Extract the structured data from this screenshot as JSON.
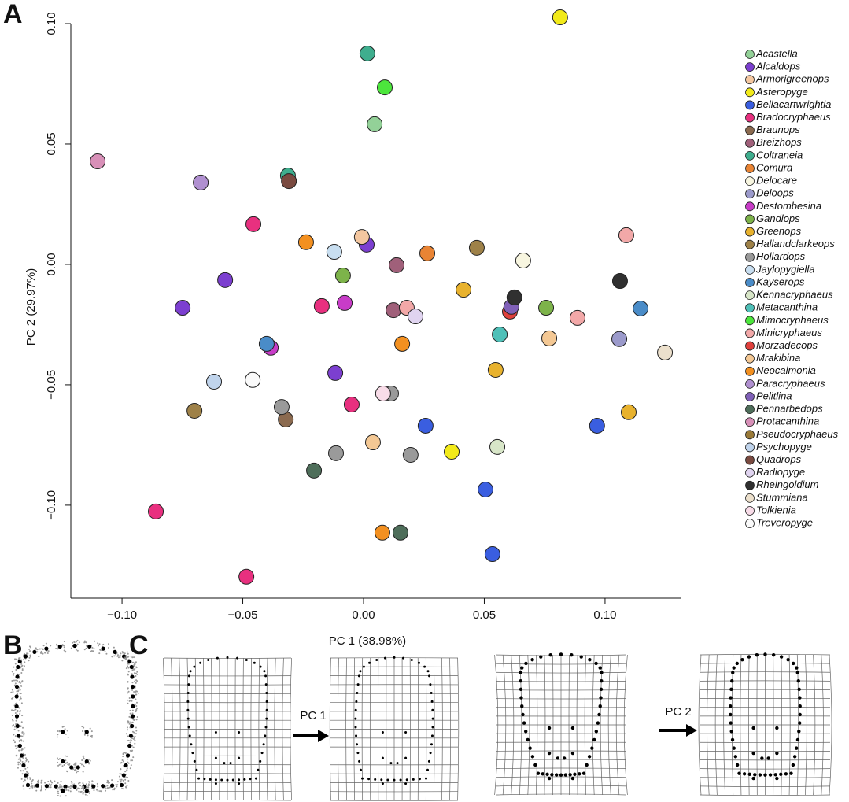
{
  "figure": {
    "panel_labels": [
      "A",
      "B",
      "C"
    ],
    "arrow_labels": [
      "PC 1",
      "PC 2"
    ]
  },
  "chart_data": {
    "type": "scatter",
    "x_label": "PC 1 (38.98%)",
    "y_label": "PC 2 (29.97%)",
    "xlim": [
      -0.1212,
      0.1313
    ],
    "ylim": [
      -0.1386,
      0.1
    ],
    "xticks": [
      {
        "value": -0.1,
        "label": "−0.10"
      },
      {
        "value": -0.05,
        "label": "−0.05"
      },
      {
        "value": 0,
        "label": "0.00"
      },
      {
        "value": 0.05,
        "label": "0.05"
      },
      {
        "value": 0.1,
        "label": "0.10"
      }
    ],
    "yticks": [
      {
        "value": -0.1,
        "label": "−0.10"
      },
      {
        "value": -0.05,
        "label": "−0.05"
      },
      {
        "value": 0,
        "label": "0.00"
      },
      {
        "value": 0.05,
        "label": "0.05"
      },
      {
        "value": 0.1,
        "label": "0.10"
      }
    ],
    "legend_position": "right",
    "series": [
      {
        "name": "Acastella",
        "color": "#93d198",
        "x": [
          0.0046
        ],
        "y": [
          0.0582
        ]
      },
      {
        "name": "Alcaldops",
        "color": "#7c3fd0",
        "x": [
          -0.0573,
          -0.0749,
          -0.0117,
          0.0013
        ],
        "y": [
          -0.0065,
          -0.018,
          -0.0451,
          0.0082
        ]
      },
      {
        "name": "Armorigreenops",
        "color": "#f4c7a0",
        "x": [
          -0.0007
        ],
        "y": [
          0.0114
        ]
      },
      {
        "name": "Asteropyge",
        "color": "#f2ea1a",
        "x": [
          0.0814,
          0.0365
        ],
        "y": [
          0.1026,
          -0.0778
        ]
      },
      {
        "name": "Bellacartwrightia",
        "color": "#3a5ee0",
        "x": [
          0.0257,
          0.0967,
          0.0505,
          0.0534
        ],
        "y": [
          -0.067,
          -0.067,
          -0.0935,
          -0.1203
        ]
      },
      {
        "name": "Bradocryphaeus",
        "color": "#e8307f",
        "x": [
          -0.0456,
          -0.0173,
          -0.0049,
          -0.086,
          -0.0485
        ],
        "y": [
          0.0167,
          -0.0173,
          -0.0582,
          -0.1026,
          -0.1297
        ]
      },
      {
        "name": "Braunops",
        "color": "#8b6a4f",
        "x": [
          -0.0322
        ],
        "y": [
          -0.0644
        ]
      },
      {
        "name": "Breizhops",
        "color": "#a0607a",
        "x": [
          0.0137,
          0.0124
        ],
        "y": [
          -0.0003,
          -0.019
        ]
      },
      {
        "name": "Coltraneia",
        "color": "#3fae8e",
        "x": [
          0.0016,
          -0.0313
        ],
        "y": [
          0.0876,
          0.0369
        ]
      },
      {
        "name": "Comura",
        "color": "#e98434",
        "x": [
          0.0264
        ],
        "y": [
          0.0046
        ]
      },
      {
        "name": "Delocare",
        "color": "#f8f6e0",
        "x": [
          0.0661
        ],
        "y": [
          0.0016
        ]
      },
      {
        "name": "Deloops",
        "color": "#9b9acb",
        "x": [
          0.1059
        ],
        "y": [
          -0.031
        ]
      },
      {
        "name": "Destombesina",
        "color": "#c83cc8",
        "x": [
          -0.0078,
          -0.0384
        ],
        "y": [
          -0.016,
          -0.0346
        ]
      },
      {
        "name": "Gandlops",
        "color": "#7db34a",
        "x": [
          -0.0085,
          0.0756
        ],
        "y": [
          -0.0046,
          -0.018
        ]
      },
      {
        "name": "Greenops",
        "color": "#e8b22e",
        "x": [
          0.0414,
          0.0547,
          0.1098
        ],
        "y": [
          -0.0105,
          -0.0438,
          -0.0614
        ]
      },
      {
        "name": "Hallandclarkeops",
        "color": "#9e8148",
        "x": [
          0.0469,
          -0.07
        ],
        "y": [
          0.0069,
          -0.0608
        ]
      },
      {
        "name": "Hollardops",
        "color": "#9a9a9a",
        "x": [
          0.0114,
          -0.0339,
          -0.0114,
          0.0195
        ],
        "y": [
          -0.0536,
          -0.0592,
          -0.0784,
          -0.0791
        ]
      },
      {
        "name": "Jaylopygiella",
        "color": "#c8def0",
        "x": [
          -0.0121
        ],
        "y": [
          0.0052
        ]
      },
      {
        "name": "Kayserops",
        "color": "#4a8cc8",
        "x": [
          0.1147,
          -0.0401
        ],
        "y": [
          -0.0183,
          -0.033
        ]
      },
      {
        "name": "Kennacryphaeus",
        "color": "#d8e6c8",
        "x": [
          0.0554
        ],
        "y": [
          -0.0758
        ]
      },
      {
        "name": "Metacanthina",
        "color": "#4fc0b8",
        "x": [
          0.0564
        ],
        "y": [
          -0.0291
        ]
      },
      {
        "name": "Mimocryphaeus",
        "color": "#4ce63c",
        "x": [
          0.0088
        ],
        "y": [
          0.0735
        ]
      },
      {
        "name": "Minicryphaeus",
        "color": "#f2a8a8",
        "x": [
          0.1088,
          0.0179,
          0.0886
        ],
        "y": [
          0.0121,
          -0.018,
          -0.0222
        ]
      },
      {
        "name": "Morzadecops",
        "color": "#e0403c",
        "x": [
          0.0606
        ],
        "y": [
          -0.0196
        ]
      },
      {
        "name": "Mrakibina",
        "color": "#f4c894",
        "x": [
          0.0769,
          0.0039
        ],
        "y": [
          -0.0307,
          -0.0739
        ]
      },
      {
        "name": "Neocalmonia",
        "color": "#f39020",
        "x": [
          -0.0238,
          0.016,
          0.0078
        ],
        "y": [
          0.0092,
          -0.033,
          -0.1114
        ]
      },
      {
        "name": "Paracryphaeus",
        "color": "#b090d0",
        "x": [
          -0.0674
        ],
        "y": [
          0.034
        ]
      },
      {
        "name": "Pelitlina",
        "color": "#8060b8",
        "x": [
          0.0612
        ],
        "y": [
          -0.0176
        ]
      },
      {
        "name": "Pennarbedops",
        "color": "#4e6e5a",
        "x": [
          -0.0205,
          0.0153
        ],
        "y": [
          -0.0856,
          -0.1114
        ]
      },
      {
        "name": "Protacanthina",
        "color": "#d890b8",
        "x": [
          -0.1101
        ],
        "y": [
          0.0428
        ]
      },
      {
        "name": "Pseudocryphaeus",
        "color": "#9a7a38",
        "x": [],
        "y": []
      },
      {
        "name": "Psychopyge",
        "color": "#c0d4ec",
        "x": [
          -0.0619
        ],
        "y": [
          -0.0487
        ]
      },
      {
        "name": "Quadrops",
        "color": "#7a4a40",
        "x": [
          -0.0309
        ],
        "y": [
          0.0346
        ]
      },
      {
        "name": "Radiopyge",
        "color": "#e0d4f0",
        "x": [
          0.0215
        ],
        "y": [
          -0.0216
        ]
      },
      {
        "name": "Rheingoldium",
        "color": "#303030",
        "x": [
          0.1062,
          0.0625
        ],
        "y": [
          -0.0069,
          -0.0137
        ]
      },
      {
        "name": "Stummiana",
        "color": "#ece0cc",
        "x": [
          0.1248
        ],
        "y": [
          -0.0366
        ]
      },
      {
        "name": "Tolkienia",
        "color": "#f8dce8",
        "x": [
          0.0081
        ],
        "y": [
          -0.0536
        ]
      },
      {
        "name": "Treveropyge",
        "color": "#fafafa",
        "x": [
          -0.0459
        ],
        "y": [
          -0.048
        ]
      }
    ]
  }
}
